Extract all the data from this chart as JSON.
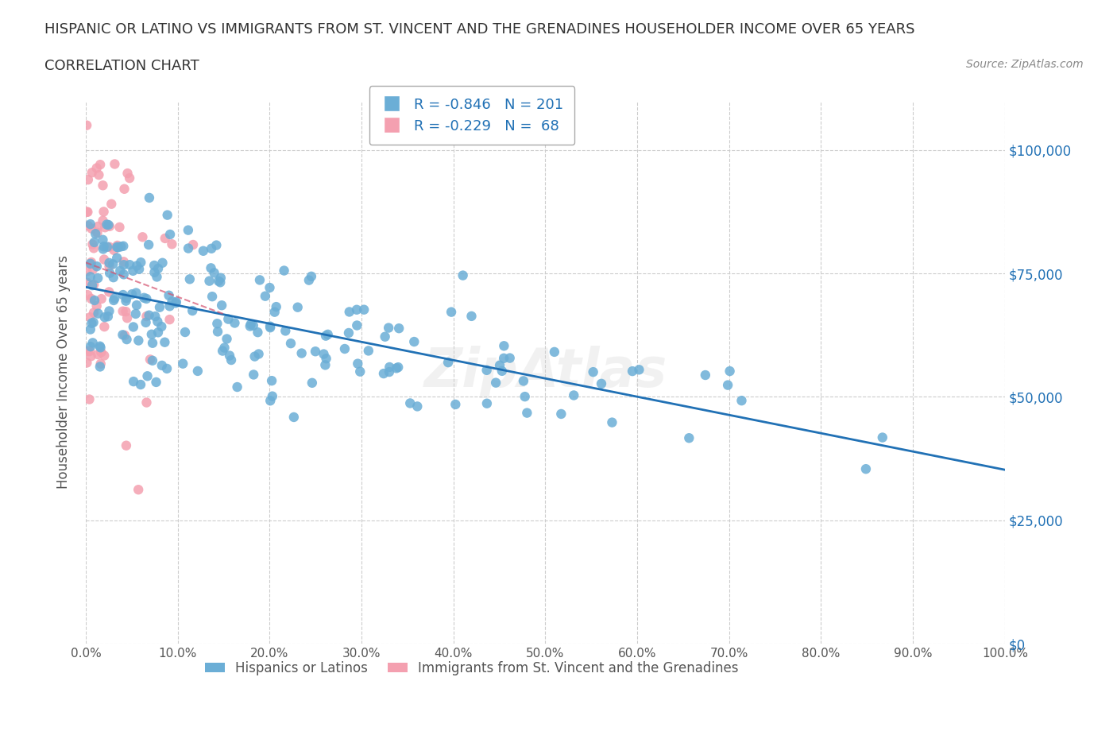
{
  "title_line1": "HISPANIC OR LATINO VS IMMIGRANTS FROM ST. VINCENT AND THE GRENADINES HOUSEHOLDER INCOME OVER 65 YEARS",
  "title_line2": "CORRELATION CHART",
  "source_text": "Source: ZipAtlas.com",
  "xlabel": "",
  "ylabel": "Householder Income Over 65 years",
  "xlim": [
    0,
    100
  ],
  "ylim": [
    0,
    110000
  ],
  "yticks": [
    0,
    25000,
    50000,
    75000,
    100000
  ],
  "ytick_labels": [
    "$0",
    "$25,000",
    "$50,000",
    "$75,000",
    "$100,000"
  ],
  "xtick_labels": [
    "0.0%",
    "10.0%",
    "20.0%",
    "30.0%",
    "40.0%",
    "50.0%",
    "60.0%",
    "70.0%",
    "80.0%",
    "90.0%",
    "100.0%"
  ],
  "xticks": [
    0,
    10,
    20,
    30,
    40,
    50,
    60,
    70,
    80,
    90,
    100
  ],
  "blue_color": "#6baed6",
  "blue_line_color": "#2171b5",
  "pink_color": "#f4a0b0",
  "pink_line_color": "#d4526e",
  "R_blue": -0.846,
  "N_blue": 201,
  "R_pink": -0.229,
  "N_pink": 68,
  "legend_label_blue": "Hispanics or Latinos",
  "legend_label_pink": "Immigrants from St. Vincent and the Grenadines",
  "blue_seed": 42,
  "pink_seed": 99,
  "blue_intercept": 71000,
  "blue_slope": -370,
  "pink_intercept": 75000,
  "pink_slope": -800,
  "watermark": "ZipAtlas",
  "grid_color": "#cccccc",
  "grid_style": "--",
  "background_color": "#ffffff"
}
